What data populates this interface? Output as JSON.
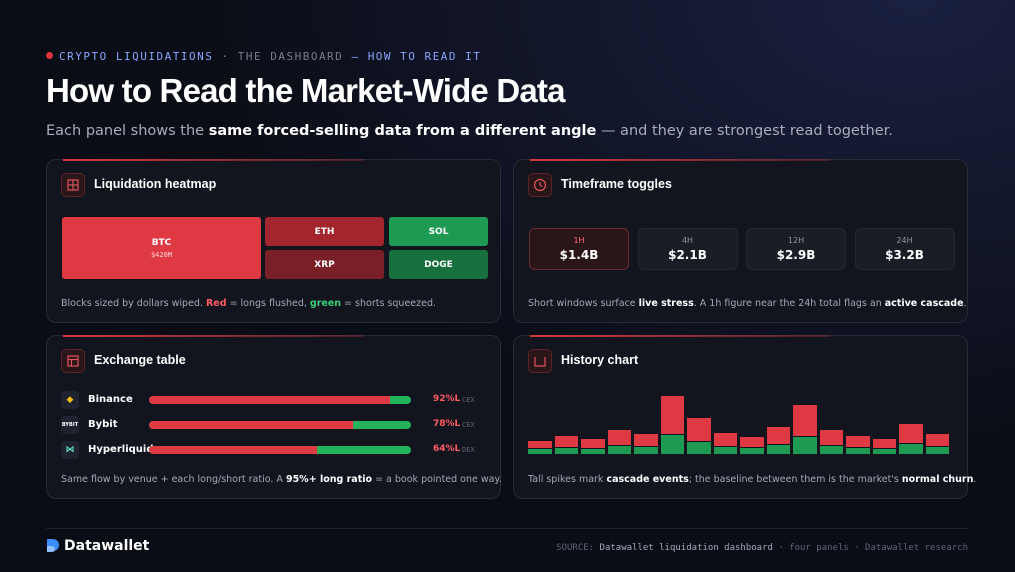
{
  "header": {
    "kicker": [
      "CRYPTO LIQUIDATIONS",
      "· THE DASHBOARD",
      "—",
      "HOW TO READ IT"
    ],
    "title": "How to Read the Market-Wide Data",
    "subtitle": [
      "Each panel shows the ",
      "same forced-selling data from a different angle",
      " — and they are strongest read together."
    ]
  },
  "heatmap": {
    "title": "Liquidation heatmap",
    "blocks": [
      {
        "label": "BTC",
        "sublabel": "$420M",
        "color": "#df3a44"
      },
      {
        "label": "ETH",
        "color": "#a3262e"
      },
      {
        "label": "SOL",
        "color": "#1f9a52"
      },
      {
        "label": "XRP",
        "color": "#7a1f25"
      },
      {
        "label": "DOGE",
        "color": "#17703d"
      }
    ],
    "caption": [
      "Blocks sized by dollars wiped. ",
      "Red",
      " = longs flushed, ",
      "green",
      " = shorts squeezed."
    ]
  },
  "timeframes": {
    "title": "Timeframe toggles",
    "tabs": [
      {
        "label": "1H",
        "value": "$1.4B"
      },
      {
        "label": "4H",
        "value": "$2.1B"
      },
      {
        "label": "12H",
        "value": "$2.9B"
      },
      {
        "label": "24H",
        "value": "$3.2B"
      }
    ],
    "caption": [
      "Short windows surface ",
      "live stress",
      ". A 1h figure near the 24h total flags an ",
      "active cascade",
      "."
    ]
  },
  "exchanges": {
    "title": "Exchange table",
    "rows": [
      {
        "name": "Binance",
        "long_ratio": 92,
        "ratio_label": "92%L",
        "kind": "CEX",
        "icon": "◆"
      },
      {
        "name": "Bybit",
        "long_ratio": 78,
        "ratio_label": "78%L",
        "kind": "CEX",
        "icon": "BYBIT"
      },
      {
        "name": "Hyperliquid",
        "long_ratio": 64,
        "ratio_label": "64%L",
        "kind": "DEX",
        "icon": "⋈"
      }
    ],
    "caption": [
      "Same flow by venue + each long/short ratio. A ",
      "95%+ long ratio",
      " = a book pointed one way."
    ]
  },
  "history": {
    "title": "History chart",
    "longs": [
      8,
      12,
      10,
      16,
      13,
      39,
      24,
      14,
      11,
      18,
      32,
      16,
      12,
      10,
      20,
      13
    ],
    "shorts": [
      5,
      6,
      5,
      8,
      7,
      19,
      12,
      7,
      6,
      9,
      17,
      8,
      6,
      5,
      10,
      7
    ],
    "long_color": "#df3a44",
    "short_color": "#1f9a52",
    "caption": [
      "Tall spikes mark ",
      "cascade events",
      "; the baseline between them is the market's ",
      "normal churn",
      "."
    ]
  },
  "footer": {
    "brand": "Datawallet",
    "source": [
      "SOURCE: ",
      "Datawallet liquidation dashboard",
      " · four panels · Datawallet research"
    ]
  }
}
